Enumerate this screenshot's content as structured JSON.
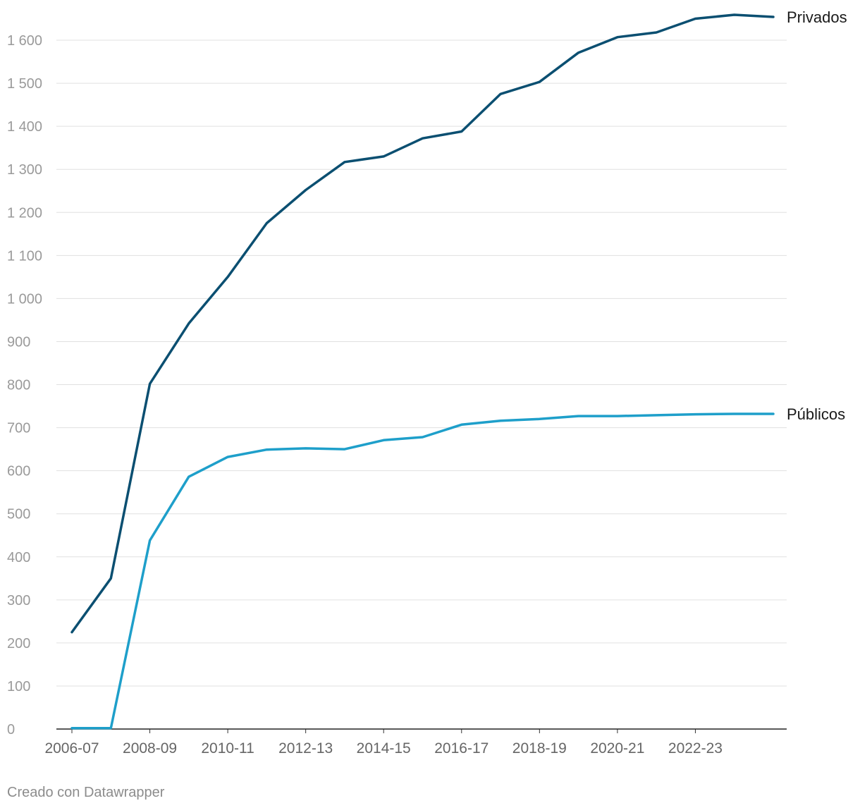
{
  "chart_data": {
    "type": "line",
    "title": "",
    "xlabel": "",
    "ylabel": "",
    "ylim": [
      0,
      1600
    ],
    "yticks": [
      0,
      100,
      200,
      300,
      400,
      500,
      600,
      700,
      800,
      900,
      1000,
      1100,
      1200,
      1300,
      1400,
      1500,
      1600
    ],
    "ytick_labels": [
      "0",
      "100",
      "200",
      "300",
      "400",
      "500",
      "600",
      "700",
      "800",
      "900",
      "1 000",
      "1 100",
      "1 200",
      "1 300",
      "1 400",
      "1 500",
      "1 600"
    ],
    "categories": [
      "2006-07",
      "2007-08",
      "2008-09",
      "2009-10",
      "2010-11",
      "2011-12",
      "2012-13",
      "2013-14",
      "2014-15",
      "2015-16",
      "2016-17",
      "2017-18",
      "2018-19",
      "2019-20",
      "2020-21",
      "2021-22",
      "2022-23",
      "2023-24",
      "2024-25"
    ],
    "xtick_labels": [
      "2006-07",
      "2008-09",
      "2010-11",
      "2012-13",
      "2014-15",
      "2016-17",
      "2018-19",
      "2020-21",
      "2022-23"
    ],
    "grid": true,
    "legend": "direct labels at line ends",
    "series": [
      {
        "name": "Privados",
        "color": "#0b4f71",
        "values": [
          225,
          350,
          802,
          942,
          1050,
          1175,
          1252,
          1317,
          1330,
          1372,
          1388,
          1475,
          1503,
          1571,
          1607,
          1618,
          1650,
          1659,
          1654
        ]
      },
      {
        "name": "Públicos",
        "color": "#1e9fca",
        "values": [
          2,
          2,
          438,
          586,
          632,
          649,
          652,
          650,
          671,
          678,
          707,
          716,
          720,
          727,
          727,
          729,
          731,
          732,
          732
        ]
      }
    ]
  },
  "footer": "Creado con Datawrapper"
}
